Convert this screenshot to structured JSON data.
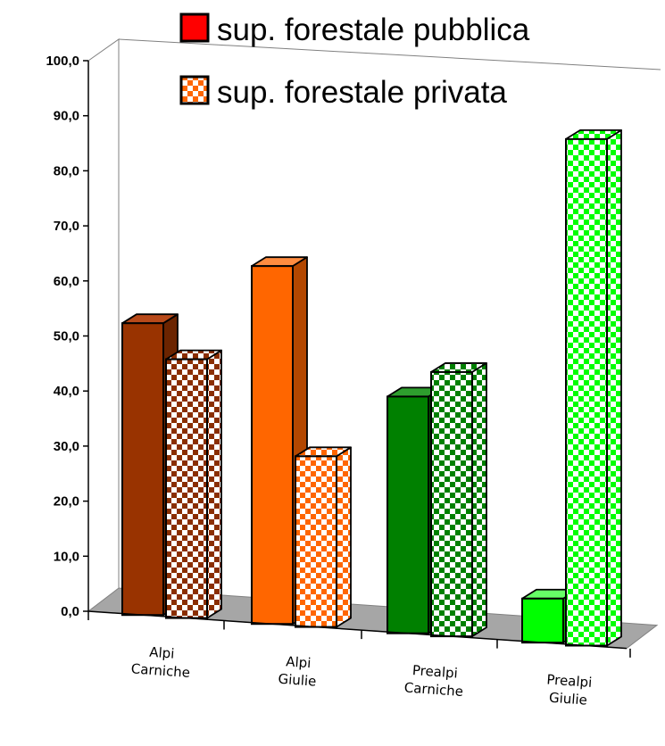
{
  "chart_data": {
    "type": "bar",
    "title": "",
    "xlabel": "",
    "ylabel": "",
    "ylim": [
      0,
      100
    ],
    "y_ticks": [
      "0,0",
      "10,0",
      "20,0",
      "30,0",
      "40,0",
      "50,0",
      "60,0",
      "70,0",
      "80,0",
      "90,0",
      "100,0"
    ],
    "categories": [
      [
        "Alpi",
        "Carniche"
      ],
      [
        "Alpi",
        "Giulie"
      ],
      [
        "Prealpi",
        "Carniche"
      ],
      [
        "Prealpi",
        "Giulie"
      ]
    ],
    "series": [
      {
        "name": "sup. forestale pubblica",
        "pattern": "solid",
        "values": [
          53,
          65,
          43,
          8
        ]
      },
      {
        "name": "sup. forestale privata",
        "pattern": "checkered",
        "values": [
          47,
          31,
          48,
          92
        ]
      }
    ],
    "bar_colors": [
      {
        "front": "#993300",
        "side": "#6b2400",
        "top": "#b84a1a",
        "checker": "#8a2e00"
      },
      {
        "front": "#ff6600",
        "side": "#b34700",
        "top": "#ff8c40",
        "checker": "#ff6600"
      },
      {
        "front": "#008000",
        "side": "#005a00",
        "top": "#2e9e2e",
        "checker": "#008000"
      },
      {
        "front": "#00ff00",
        "side": "#00b300",
        "top": "#66ff66",
        "checker": "#00ff00"
      }
    ],
    "legend": {
      "position": "top",
      "swatch_colors": {
        "solid": "#ff0000",
        "checker": "#ff6600"
      }
    },
    "floor_color": "#a6a6a6",
    "grid": false
  }
}
